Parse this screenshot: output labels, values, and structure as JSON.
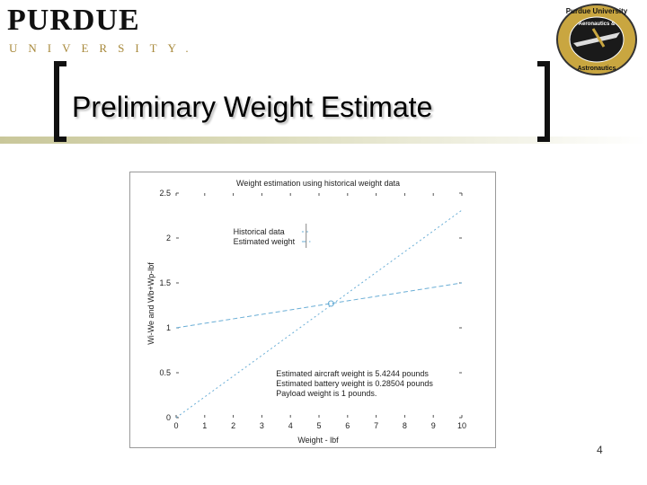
{
  "header": {
    "logo_word": "PURDUE",
    "logo_sub": "UNIVERSITY.",
    "seal_top": "Purdue University",
    "seal_mid": "Aeronautics &",
    "seal_bottom": "Astronautics"
  },
  "slide": {
    "title": "Preliminary Weight Estimate",
    "page_number": "4"
  },
  "colors": {
    "accent_gold": "#a8893b",
    "title_band": "#c9c79a",
    "series_line": "#6aaed6"
  },
  "chart_data": {
    "type": "line",
    "title": "Weight estimation using historical weight data",
    "xlabel": "Weight - lbf",
    "ylabel": "Wi-We and Wb+Wp-lbf",
    "xlim": [
      0,
      10
    ],
    "ylim": [
      0,
      2.5
    ],
    "x_ticks": [
      0,
      1,
      2,
      3,
      4,
      5,
      6,
      7,
      8,
      9,
      10
    ],
    "y_ticks": [
      0,
      0.5,
      1,
      1.5,
      2,
      2.5
    ],
    "y_tick_labels": [
      "0",
      "0.5",
      "1",
      "1.5",
      "2",
      "2.5"
    ],
    "grid": false,
    "legend_position": "upper-left",
    "series": [
      {
        "name": "Historical data",
        "x": [
          0,
          10
        ],
        "y": [
          0,
          2.31
        ],
        "dash": "2,3"
      },
      {
        "name": "Estimated weight",
        "x": [
          0,
          10
        ],
        "y": [
          1.0,
          1.5
        ],
        "dash": "5,3"
      }
    ],
    "intersection": {
      "x": 5.42,
      "y": 1.27
    },
    "annotations": [
      "Estimated aircraft weight is 5.4244 pounds",
      "Estimated battery weight is 0.28504 pounds",
      "Payload weight is 1 pounds."
    ]
  }
}
